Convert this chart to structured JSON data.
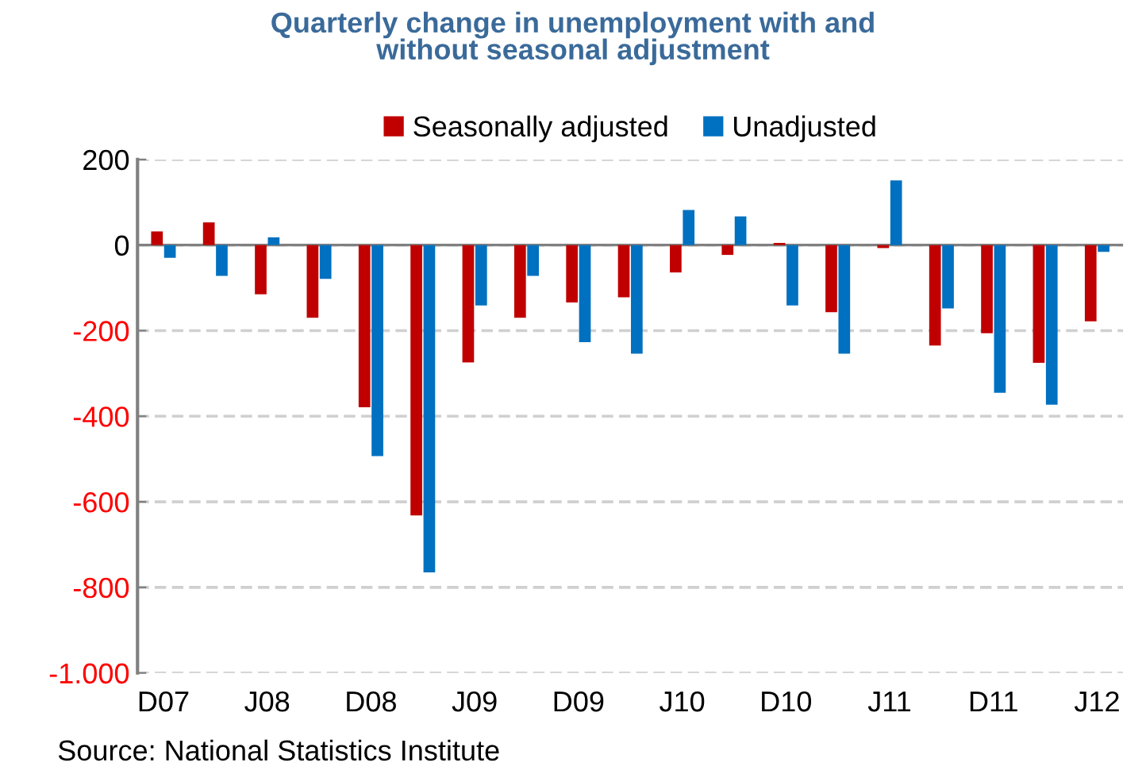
{
  "chart_data": {
    "type": "bar",
    "title": "Quarterly change in unemployment with and\nwithout seasonal adjustment",
    "categories": [
      "D07",
      null,
      "J08",
      null,
      "D08",
      null,
      "J09",
      null,
      "D09",
      null,
      "J10",
      null,
      "D10",
      null,
      "J11",
      null,
      "D11",
      null,
      "J12"
    ],
    "series": [
      {
        "name": "Seasonally adjusted",
        "color": "#c00000",
        "values": [
          32,
          53,
          -115,
          -170,
          -379,
          -632,
          -274,
          -170,
          -134,
          -122,
          -64,
          -23,
          5,
          -157,
          -7,
          -235,
          -206,
          -275,
          -178
        ]
      },
      {
        "name": "Unadjusted",
        "color": "#0070c0",
        "values": [
          -30,
          -72,
          18,
          -79,
          -493,
          -765,
          -141,
          -72,
          -227,
          -254,
          82,
          67,
          -141,
          -254,
          151,
          -148,
          -345,
          -373,
          -16
        ]
      }
    ],
    "ylim": [
      -1000,
      200
    ],
    "yticks": [
      200,
      0,
      -200,
      -400,
      -600,
      -800,
      {
        "value": -1000,
        "label": "-1.000"
      }
    ],
    "grid": "y",
    "legend": "top",
    "annotations": [
      "Source: National Statistics Institute"
    ]
  }
}
